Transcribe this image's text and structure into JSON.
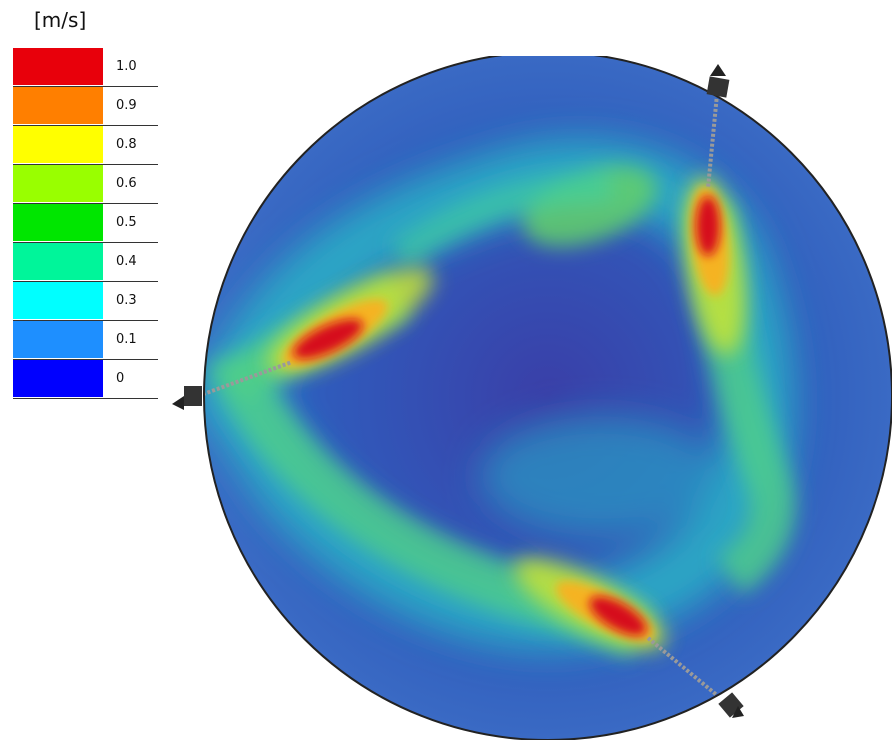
{
  "legend": {
    "unit": "[m/s]",
    "entries": [
      {
        "label": "1.0",
        "color": "#e8000b"
      },
      {
        "label": "0.9",
        "color": "#ff7f00"
      },
      {
        "label": "0.8",
        "color": "#ffff00"
      },
      {
        "label": "0.6",
        "color": "#99ff00"
      },
      {
        "label": "0.5",
        "color": "#00e600"
      },
      {
        "label": "0.4",
        "color": "#00f59a"
      },
      {
        "label": "0.3",
        "color": "#00ffff"
      },
      {
        "label": "0.1",
        "color": "#1e8fff"
      },
      {
        "label": "0",
        "color": "#0000ff"
      }
    ]
  },
  "figure": {
    "background_color": "#2d4fb0",
    "jets": [
      "jet-upper-right",
      "jet-left",
      "jet-bottom"
    ]
  }
}
